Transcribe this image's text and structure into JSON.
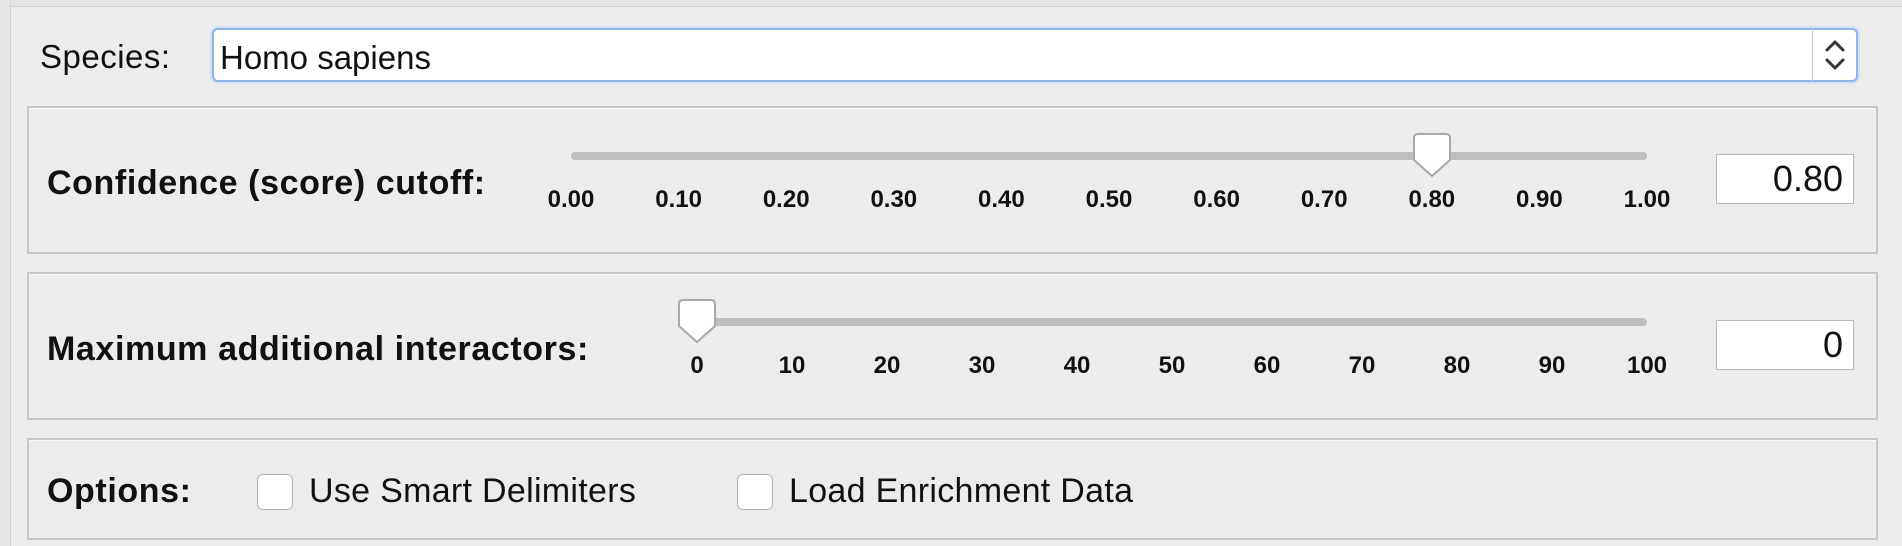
{
  "species": {
    "label": "Species:",
    "value": "Homo sapiens"
  },
  "confidence": {
    "label": "Confidence (score) cutoff:",
    "ticks": [
      "0.00",
      "0.10",
      "0.20",
      "0.30",
      "0.40",
      "0.50",
      "0.60",
      "0.70",
      "0.80",
      "0.90",
      "1.00"
    ],
    "slider_fraction": 0.8,
    "value": "0.80"
  },
  "interactors": {
    "label": "Maximum additional interactors:",
    "ticks": [
      "0",
      "10",
      "20",
      "30",
      "40",
      "50",
      "60",
      "70",
      "80",
      "90",
      "100"
    ],
    "slider_fraction": 0.0,
    "value": "0"
  },
  "options": {
    "label": "Options:",
    "smart_delimiters": {
      "label": "Use Smart Delimiters",
      "checked": false
    },
    "enrichment": {
      "label": "Load Enrichment Data",
      "checked": false
    }
  }
}
